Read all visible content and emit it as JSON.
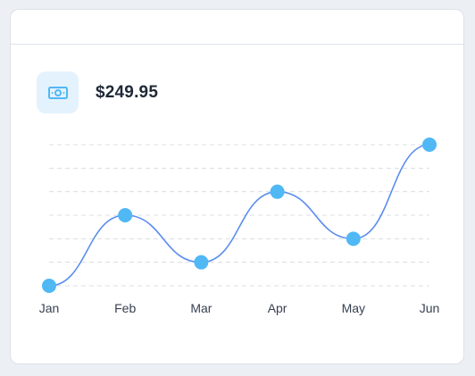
{
  "card": {
    "amount": "$249.95",
    "icon": "cash-icon"
  },
  "colors": {
    "line": "#5b8def",
    "point": "#4fb8f5",
    "grid": "#d9dde3",
    "icon_bg": "#e3f2fd",
    "icon_fg": "#4fb8f5"
  },
  "chart_data": {
    "type": "line",
    "title": "",
    "xlabel": "",
    "ylabel": "",
    "categories": [
      "Jan",
      "Feb",
      "Mar",
      "Apr",
      "May",
      "Jun"
    ],
    "series": [
      {
        "values": [
          0,
          3,
          1,
          4,
          2,
          6
        ]
      }
    ],
    "ylim": [
      0,
      6
    ],
    "grid": {
      "horizontal": true,
      "style": "dashed",
      "lines": 7
    },
    "smooth": true,
    "legend": "none"
  }
}
